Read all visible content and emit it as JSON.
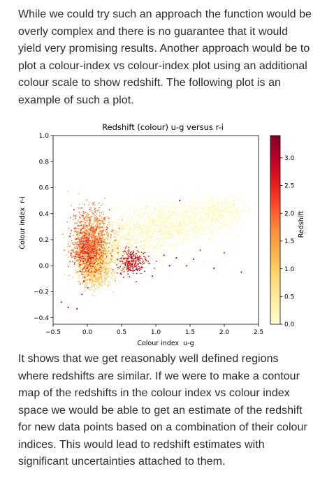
{
  "article": {
    "para1": "While we could try such an approach the function would be overly complex and there is no guarantee that it would yield very promising results. Another approach would be to plot a colour-index vs colour-index plot using an additional colour scale to show redshift. The following plot is an example of such a plot.",
    "para2": "It shows that we get reasonably well defined regions where redshifts are similar. If we were to make a contour map of the redshifts in the colour index vs colour index space we would be able to get an estimate of the redshift for new data points based on a combination of their colour indices. This would lead to redshift estimates with significant uncertainties attached to them."
  },
  "chart_data": {
    "type": "scatter",
    "title": "Redshift (colour) u-g versus r-i",
    "xlabel": "Colour index  u-g",
    "ylabel": "Colour index  r-i",
    "xlim": [
      -0.5,
      2.5
    ],
    "ylim": [
      -0.45,
      1.0
    ],
    "xticks": [
      -0.5,
      0.0,
      0.5,
      1.0,
      1.5,
      2.0,
      2.5
    ],
    "xtick_labels": [
      "−0.5",
      "0.0",
      "0.5",
      "1.0",
      "1.5",
      "2.0",
      "2.5"
    ],
    "yticks": [
      -0.4,
      -0.2,
      0.0,
      0.2,
      0.4,
      0.6,
      0.8,
      1.0
    ],
    "ytick_labels": [
      "−0.4",
      "−0.2",
      "0.0",
      "0.2",
      "0.4",
      "0.6",
      "0.8",
      "1.0"
    ],
    "grid": false,
    "colorbar": {
      "label": "Redshift",
      "range": [
        0.0,
        3.4
      ],
      "ticks": [
        0.0,
        0.5,
        1.0,
        1.5,
        2.0,
        2.5,
        3.0
      ],
      "tick_labels": [
        "0.0",
        "0.5",
        "1.0",
        "1.5",
        "2.0",
        "2.5",
        "3.0"
      ],
      "colormap": "YlOrRd",
      "colors": [
        "#ffffcc",
        "#ffeda0",
        "#fed976",
        "#feb24c",
        "#fd8d3c",
        "#fc4e2a",
        "#e31a1c",
        "#bd0026",
        "#800026"
      ]
    },
    "clusters": [
      {
        "x": 0.05,
        "y": 0.22,
        "sx": 0.14,
        "sy": 0.11,
        "n": 900,
        "z": 1.7
      },
      {
        "x": 0.0,
        "y": 0.1,
        "sx": 0.1,
        "sy": 0.08,
        "n": 500,
        "z": 2.2
      },
      {
        "x": 0.1,
        "y": 0.05,
        "sx": 0.13,
        "sy": 0.08,
        "n": 650,
        "z": 0.85
      },
      {
        "x": 0.1,
        "y": -0.05,
        "sx": 0.12,
        "sy": 0.06,
        "n": 450,
        "z": 1.0
      },
      {
        "x": 0.35,
        "y": 0.1,
        "sx": 0.18,
        "sy": 0.1,
        "n": 400,
        "z": 0.4
      },
      {
        "x": 0.65,
        "y": 0.03,
        "sx": 0.1,
        "sy": 0.05,
        "n": 260,
        "z": 2.7
      },
      {
        "x": 1.2,
        "y": 0.32,
        "sx": 0.38,
        "sy": 0.08,
        "n": 1100,
        "z": 0.1
      },
      {
        "x": 1.9,
        "y": 0.42,
        "sx": 0.22,
        "sy": 0.06,
        "n": 500,
        "z": 0.08
      },
      {
        "x": 0.75,
        "y": 0.2,
        "sx": 0.3,
        "sy": 0.1,
        "n": 450,
        "z": 0.25
      }
    ],
    "outliers": [
      {
        "x": -0.28,
        "y": -0.32,
        "z": 3.0
      },
      {
        "x": -0.38,
        "y": -0.28,
        "z": 2.7
      },
      {
        "x": -0.15,
        "y": -0.33,
        "z": 2.9
      },
      {
        "x": -0.08,
        "y": -0.22,
        "z": 2.5
      },
      {
        "x": -0.05,
        "y": -0.12,
        "z": 3.1
      },
      {
        "x": 1.2,
        "y": 0.0,
        "z": 3.0
      },
      {
        "x": 1.3,
        "y": 0.06,
        "z": 2.9
      },
      {
        "x": 1.55,
        "y": 0.05,
        "z": 2.8
      },
      {
        "x": 1.45,
        "y": 0.0,
        "z": 2.6
      },
      {
        "x": 2.25,
        "y": -0.05,
        "z": 2.9
      },
      {
        "x": 2.0,
        "y": 0.1,
        "z": 2.4
      },
      {
        "x": 1.85,
        "y": -0.02,
        "z": 3.2
      },
      {
        "x": 1.65,
        "y": 0.12,
        "z": 2.2
      },
      {
        "x": 1.12,
        "y": 0.08,
        "z": 2.5
      },
      {
        "x": 0.95,
        "y": -0.08,
        "z": 2.7
      },
      {
        "x": 0.85,
        "y": 0.05,
        "z": 3.0
      },
      {
        "x": 1.35,
        "y": 0.5,
        "z": 3.3
      }
    ]
  }
}
